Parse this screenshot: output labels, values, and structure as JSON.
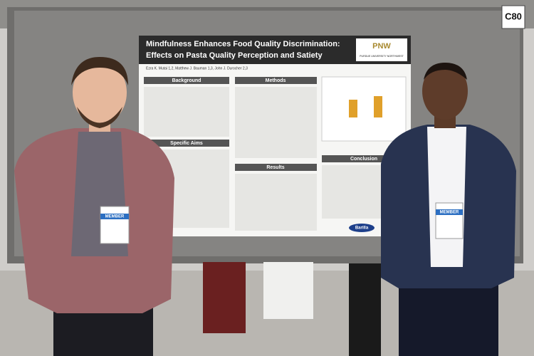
{
  "booth_sign": "C80",
  "poster": {
    "title_line_1": "Mindfulness Enhances Food Quality Discrimination:",
    "title_line_2": "Effects on Pasta Quality Perception and Satiety",
    "authors": "Ezra K. Mutai 1,2, Matthew J. Bauman 1,3, John J. Durocher 2,3",
    "logo": "PNW",
    "logo_caption": "PURDUE UNIVERSITY NORTHWEST",
    "sections": {
      "background": "Background",
      "specific_aims": "Specific Aims",
      "methods": "Methods",
      "results": "Results",
      "conclusion": "Conclusion"
    },
    "sponsor": "Barilla"
  },
  "badges": [
    "MEMBER",
    "MEMBER"
  ]
}
